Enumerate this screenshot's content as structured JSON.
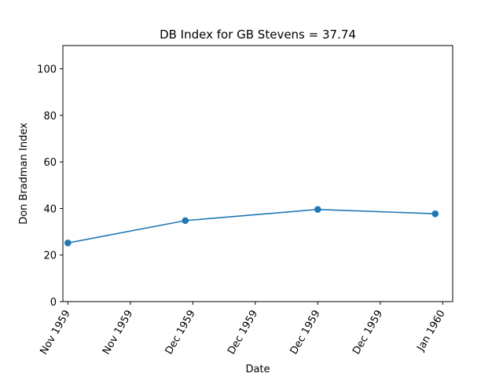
{
  "chart_data": {
    "type": "line",
    "title": "DB Index for GB Stevens = 37.74",
    "xlabel": "Date",
    "ylabel": "Don Bradman Index",
    "ylim": [
      0,
      110
    ],
    "yticks": [
      0,
      20,
      40,
      60,
      80,
      100
    ],
    "xlim": [
      -0.04,
      3.08
    ],
    "xticks": [
      {
        "value": 0.0,
        "label": "Nov 1959"
      },
      {
        "value": 0.5,
        "label": "Nov 1959"
      },
      {
        "value": 1.0,
        "label": "Dec 1959"
      },
      {
        "value": 1.5,
        "label": "Dec 1959"
      },
      {
        "value": 2.0,
        "label": "Dec 1959"
      },
      {
        "value": 2.5,
        "label": "Dec 1959"
      },
      {
        "value": 3.0,
        "label": "Jan 1960"
      }
    ],
    "series": [
      {
        "name": "DB Index",
        "color": "#1f77b4",
        "marker": "circle",
        "x": [
          0.0,
          0.94,
          2.0,
          2.94
        ],
        "values": [
          25.2,
          34.8,
          39.6,
          37.74
        ]
      }
    ]
  }
}
